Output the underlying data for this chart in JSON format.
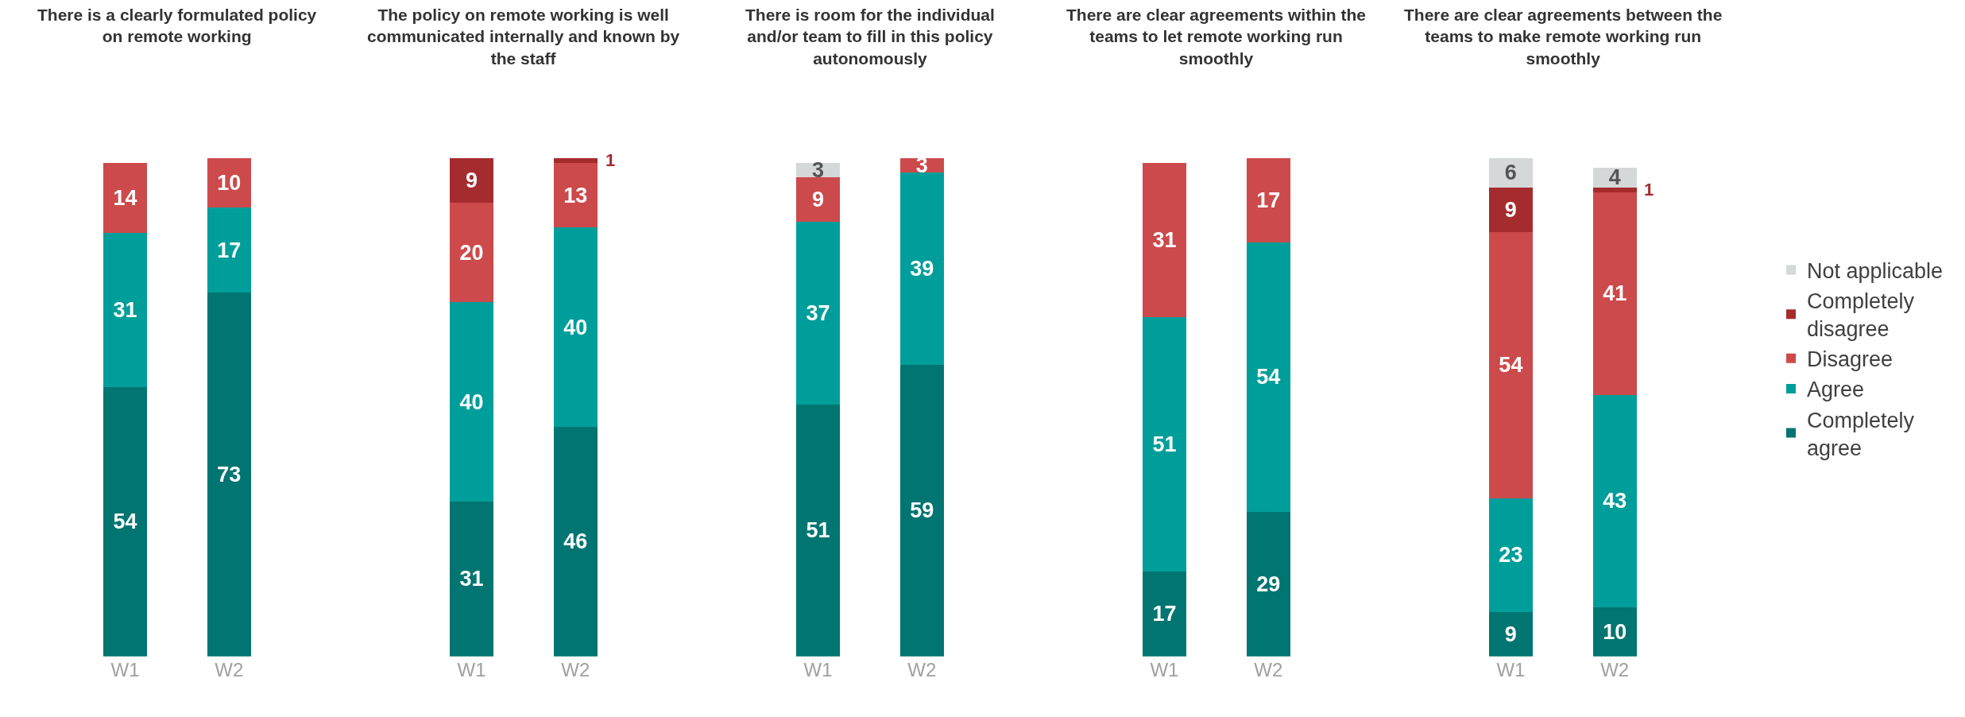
{
  "chart_data": [
    {
      "type": "bar",
      "title": "There is a clearly formulated policy on remote working",
      "categories": [
        "W1",
        "W2"
      ],
      "stacked": true,
      "data_labels": true,
      "tick_labels": "x",
      "legend": "right",
      "series": [
        {
          "name": "Completely agree",
          "color": "#007571",
          "values": [
            54,
            73
          ]
        },
        {
          "name": "Agree",
          "color": "#009e9a",
          "values": [
            31,
            17
          ]
        },
        {
          "name": "Disagree",
          "color": "#cc4a4b",
          "values": [
            14,
            10
          ]
        }
      ]
    },
    {
      "type": "bar",
      "title": "The policy on remote working is well communicated internally and known by the staff",
      "categories": [
        "W1",
        "W2"
      ],
      "stacked": true,
      "data_labels": true,
      "tick_labels": "x",
      "legend": "right",
      "series": [
        {
          "name": "Completely agree",
          "color": "#007571",
          "values": [
            31,
            46
          ]
        },
        {
          "name": "Agree",
          "color": "#009e9a",
          "values": [
            40,
            40
          ]
        },
        {
          "name": "Disagree",
          "color": "#cc4a4b",
          "values": [
            20,
            13
          ]
        },
        {
          "name": "Completely disagree",
          "color": "#a52c2e",
          "values": [
            9,
            1
          ]
        }
      ]
    },
    {
      "type": "bar",
      "title": "There is room for the individual and/or team to fill in this policy autonomously",
      "categories": [
        "W1",
        "W2"
      ],
      "stacked": true,
      "data_labels": true,
      "tick_labels": "x",
      "legend": "right",
      "series": [
        {
          "name": "Completely agree",
          "color": "#007571",
          "values": [
            51,
            59
          ]
        },
        {
          "name": "Agree",
          "color": "#009e9a",
          "values": [
            37,
            39
          ]
        },
        {
          "name": "Disagree",
          "color": "#cc4a4b",
          "values": [
            9,
            3
          ]
        },
        {
          "name": "Not applicable",
          "color": "#d5d8d8",
          "values": [
            3,
            null
          ]
        }
      ]
    },
    {
      "type": "bar",
      "title": "There are clear agreements within the teams to let remote working run smoothly",
      "categories": [
        "W1",
        "W2"
      ],
      "stacked": true,
      "data_labels": true,
      "tick_labels": "x",
      "legend": "right",
      "series": [
        {
          "name": "Completely agree",
          "color": "#007571",
          "values": [
            17,
            29
          ]
        },
        {
          "name": "Agree",
          "color": "#009e9a",
          "values": [
            51,
            54
          ]
        },
        {
          "name": "Disagree",
          "color": "#cc4a4b",
          "values": [
            31,
            17
          ]
        }
      ]
    },
    {
      "type": "bar",
      "title": "There are clear agreements between the teams to make remote working run smoothly",
      "categories": [
        "W1",
        "W2"
      ],
      "stacked": true,
      "data_labels": true,
      "tick_labels": "x",
      "legend": "right",
      "series": [
        {
          "name": "Completely agree",
          "color": "#007571",
          "values": [
            9,
            10
          ]
        },
        {
          "name": "Agree",
          "color": "#009e9a",
          "values": [
            23,
            43
          ]
        },
        {
          "name": "Disagree",
          "color": "#cc4a4b",
          "values": [
            54,
            41
          ]
        },
        {
          "name": "Completely disagree",
          "color": "#a52c2e",
          "values": [
            9,
            1
          ]
        },
        {
          "name": "Not applicable",
          "color": "#d5d8d8",
          "values": [
            6,
            4
          ]
        }
      ]
    }
  ]
}
